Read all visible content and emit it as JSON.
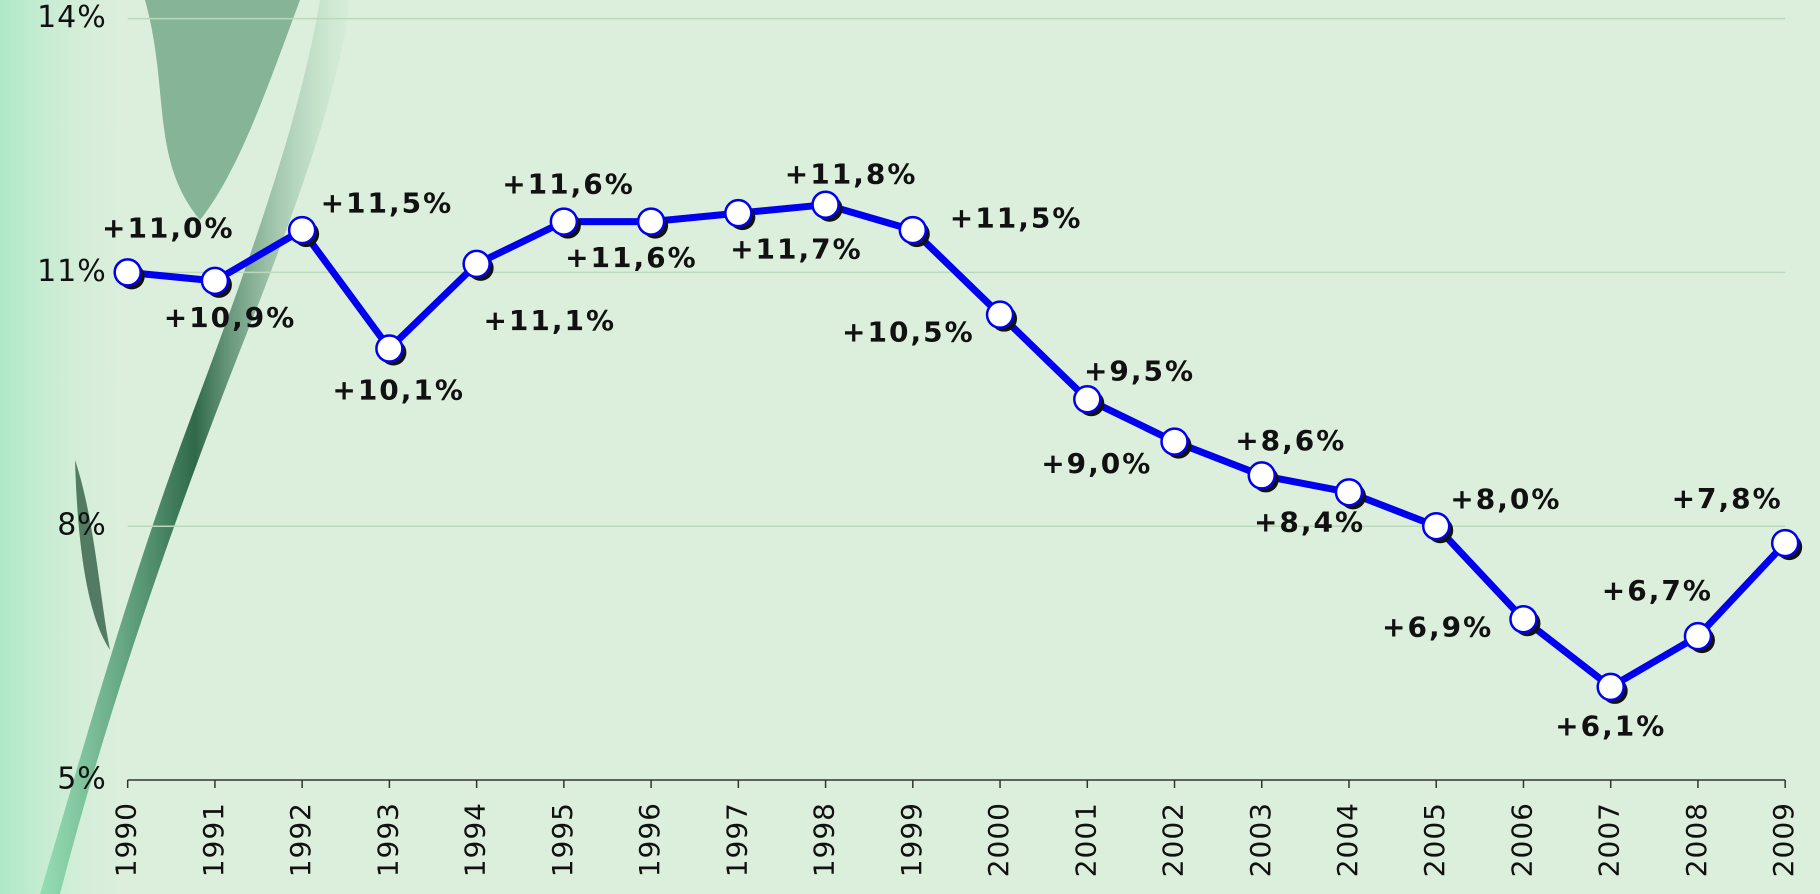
{
  "chart_data": {
    "type": "line",
    "categories": [
      "1990",
      "1991",
      "1992",
      "1993",
      "1994",
      "1995",
      "1996",
      "1997",
      "1998",
      "1999",
      "2000",
      "2001",
      "2002",
      "2003",
      "2004",
      "2005",
      "2006",
      "2007",
      "2008",
      "2009"
    ],
    "series": [
      {
        "color": "#0000ee",
        "values": [
          11.0,
          10.9,
          11.5,
          10.1,
          11.1,
          11.6,
          11.6,
          11.7,
          11.8,
          11.5,
          10.5,
          9.5,
          9.0,
          8.6,
          8.4,
          8.0,
          6.9,
          6.1,
          6.7,
          7.8
        ],
        "value_labels": [
          "+11,0%",
          "+10,9%",
          "+11,5%",
          "+10,1%",
          "+11,1%",
          "+11,6%",
          "+11,6%",
          "+11,7%",
          "+11,8%",
          "+11,5%",
          "+10,5%",
          "+9,5%",
          "+9,0%",
          "+8,6%",
          "+8,4%",
          "+8,0%",
          "+6,9%",
          "+6,1%",
          "+6,7%",
          "+7,8%"
        ]
      }
    ],
    "ylim": [
      5,
      14
    ],
    "yticks": [
      {
        "value": 5,
        "label": "5%"
      },
      {
        "value": 8,
        "label": "8%"
      },
      {
        "value": 11,
        "label": "11%"
      },
      {
        "value": 14,
        "label": "14%"
      }
    ],
    "grid": true
  }
}
